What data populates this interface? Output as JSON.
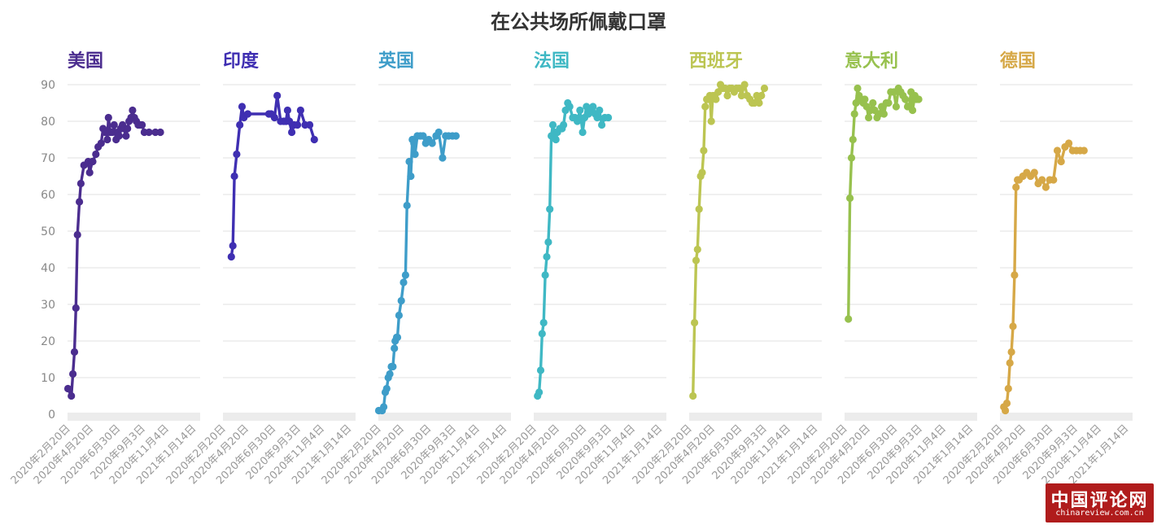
{
  "chart_data": {
    "type": "line",
    "title": "在公共场所佩戴口罩",
    "ylim": [
      0,
      90
    ],
    "yticks": [
      0,
      10,
      20,
      30,
      40,
      50,
      60,
      70,
      80,
      90
    ],
    "x_range": [
      "2020-02-20",
      "2021-02-01"
    ],
    "x_ticks": [
      "2020年2月20日",
      "2020年4月20日",
      "2020年6月30日",
      "2020年9月3日",
      "2020年11月4日",
      "2021年1月14日"
    ],
    "grid": true,
    "series": [
      {
        "name": "美国",
        "color": "#4b2d8f",
        "x": [
          "2020-02-21",
          "2020-03-01",
          "2020-03-05",
          "2020-03-09",
          "2020-03-13",
          "2020-03-17",
          "2020-03-22",
          "2020-03-26",
          "2020-04-03",
          "2020-04-14",
          "2020-04-18",
          "2020-04-25",
          "2020-04-26",
          "2020-05-04",
          "2020-05-10",
          "2020-05-18",
          "2020-05-23",
          "2020-05-28",
          "2020-06-01",
          "2020-06-03",
          "2020-06-06",
          "2020-06-11",
          "2020-06-16",
          "2020-06-21",
          "2020-06-26",
          "2020-07-01",
          "2020-07-04",
          "2020-07-08",
          "2020-07-13",
          "2020-07-17",
          "2020-07-22",
          "2020-07-26",
          "2020-07-30",
          "2020-08-04",
          "2020-08-08",
          "2020-08-13",
          "2020-08-18",
          "2020-08-23",
          "2020-08-28",
          "2020-09-02",
          "2020-09-08",
          "2020-09-20",
          "2020-10-07",
          "2020-10-20"
        ],
        "values": [
          7,
          5,
          11,
          17,
          29,
          49,
          58,
          63,
          68,
          69,
          66,
          69,
          69,
          71,
          73,
          74,
          78,
          77,
          77,
          75,
          81,
          77,
          77,
          79,
          75,
          77,
          76,
          78,
          79,
          78,
          76,
          78,
          80,
          81,
          83,
          81,
          80,
          79,
          79,
          79,
          77,
          77,
          77,
          77
        ]
      },
      {
        "name": "印度",
        "color": "#3f2fb2",
        "x": [
          "2020-03-13",
          "2020-03-17",
          "2020-03-21",
          "2020-03-27",
          "2020-04-04",
          "2020-04-10",
          "2020-04-15",
          "2020-04-25",
          "2020-06-19",
          "2020-06-25",
          "2020-07-04",
          "2020-07-11",
          "2020-07-20",
          "2020-07-28",
          "2020-08-03",
          "2020-08-07",
          "2020-08-12",
          "2020-08-18",
          "2020-08-24",
          "2020-09-02",
          "2020-09-10",
          "2020-09-22",
          "2020-10-04",
          "2020-10-16"
        ],
        "values": [
          43,
          46,
          65,
          71,
          79,
          84,
          81,
          82,
          82,
          82,
          81,
          87,
          80,
          80,
          80,
          83,
          80,
          77,
          79,
          79,
          83,
          79,
          79,
          75
        ]
      },
      {
        "name": "英国",
        "color": "#3e9dc9",
        "x": [
          "2020-02-21",
          "2020-03-01",
          "2020-03-05",
          "2020-03-09",
          "2020-03-13",
          "2020-03-17",
          "2020-03-21",
          "2020-03-25",
          "2020-03-29",
          "2020-04-02",
          "2020-04-04",
          "2020-04-08",
          "2020-04-10",
          "2020-04-14",
          "2020-04-20",
          "2020-04-26",
          "2020-05-01",
          "2020-05-05",
          "2020-05-11",
          "2020-05-15",
          "2020-05-19",
          "2020-05-23",
          "2020-05-26",
          "2020-06-01",
          "2020-06-09",
          "2020-06-16",
          "2020-06-23",
          "2020-07-01",
          "2020-07-10",
          "2020-07-20",
          "2020-07-27",
          "2020-08-06",
          "2020-08-14",
          "2020-08-22",
          "2020-09-01",
          "2020-09-10"
        ],
        "values": [
          1,
          1,
          2,
          6,
          7,
          10,
          11,
          13,
          13,
          18,
          20,
          21,
          21,
          27,
          31,
          36,
          38,
          57,
          69,
          65,
          75,
          74,
          71,
          76,
          76,
          76,
          74,
          75,
          74,
          76,
          77,
          70,
          76,
          76,
          76,
          76
        ]
      },
      {
        "name": "法国",
        "color": "#3fb8c4",
        "x": [
          "2020-03-01",
          "2020-03-05",
          "2020-03-09",
          "2020-03-13",
          "2020-03-17",
          "2020-03-21",
          "2020-03-25",
          "2020-03-29",
          "2020-04-02",
          "2020-04-06",
          "2020-04-10",
          "2020-04-14",
          "2020-04-18",
          "2020-04-22",
          "2020-04-28",
          "2020-05-04",
          "2020-05-08",
          "2020-05-13",
          "2020-05-19",
          "2020-05-24",
          "2020-06-01",
          "2020-06-07",
          "2020-06-13",
          "2020-06-20",
          "2020-06-27",
          "2020-07-02",
          "2020-07-07",
          "2020-07-12",
          "2020-07-18",
          "2020-07-24",
          "2020-07-30",
          "2020-08-04",
          "2020-08-10",
          "2020-08-16",
          "2020-08-24",
          "2020-09-02"
        ],
        "values": [
          5,
          6,
          12,
          22,
          25,
          38,
          43,
          47,
          56,
          76,
          79,
          77,
          75,
          77,
          78,
          78,
          79,
          83,
          85,
          84,
          81,
          81,
          80,
          83,
          77,
          81,
          84,
          82,
          83,
          84,
          82,
          81,
          83,
          79,
          81,
          81
        ]
      },
      {
        "name": "西班牙",
        "color": "#bcc552",
        "x": [
          "2020-03-01",
          "2020-03-05",
          "2020-03-09",
          "2020-03-13",
          "2020-03-17",
          "2020-03-21",
          "2020-03-25",
          "2020-03-29",
          "2020-04-02",
          "2020-04-06",
          "2020-04-10",
          "2020-04-14",
          "2020-04-18",
          "2020-04-22",
          "2020-04-26",
          "2020-04-30",
          "2020-05-06",
          "2020-05-12",
          "2020-05-18",
          "2020-05-24",
          "2020-05-30",
          "2020-06-05",
          "2020-06-11",
          "2020-06-17",
          "2020-06-23",
          "2020-06-30",
          "2020-07-06",
          "2020-07-14",
          "2020-07-21",
          "2020-07-28",
          "2020-08-03",
          "2020-08-09",
          "2020-08-15",
          "2020-08-21",
          "2020-08-27",
          "2020-09-04"
        ],
        "values": [
          5,
          25,
          42,
          45,
          56,
          65,
          66,
          72,
          84,
          86,
          86,
          87,
          80,
          87,
          87,
          86,
          88,
          90,
          89,
          89,
          87,
          89,
          89,
          88,
          89,
          89,
          87,
          90,
          87,
          86,
          85,
          85,
          87,
          85,
          87,
          89
        ]
      },
      {
        "name": "意大利",
        "color": "#97c14e",
        "x": [
          "2020-03-01",
          "2020-03-05",
          "2020-03-09",
          "2020-03-13",
          "2020-03-17",
          "2020-03-21",
          "2020-03-25",
          "2020-03-29",
          "2020-04-03",
          "2020-04-09",
          "2020-04-13",
          "2020-04-18",
          "2020-04-23",
          "2020-04-28",
          "2020-05-04",
          "2020-05-09",
          "2020-05-15",
          "2020-05-21",
          "2020-05-27",
          "2020-06-02",
          "2020-06-08",
          "2020-06-14",
          "2020-06-20",
          "2020-06-28",
          "2020-07-04",
          "2020-07-10",
          "2020-07-16",
          "2020-07-22",
          "2020-07-28",
          "2020-08-03",
          "2020-08-07",
          "2020-08-12",
          "2020-08-16",
          "2020-08-22",
          "2020-08-26",
          "2020-09-01"
        ],
        "values": [
          26,
          59,
          70,
          75,
          82,
          85,
          89,
          87,
          86,
          85,
          86,
          84,
          81,
          83,
          85,
          83,
          81,
          82,
          84,
          82,
          85,
          85,
          88,
          88,
          84,
          89,
          88,
          87,
          86,
          84,
          84,
          88,
          83,
          87,
          86,
          86
        ]
      },
      {
        "name": "德国",
        "color": "#d6a847",
        "x": [
          "2020-03-01",
          "2020-03-05",
          "2020-03-09",
          "2020-03-13",
          "2020-03-17",
          "2020-03-21",
          "2020-03-25",
          "2020-03-29",
          "2020-04-02",
          "2020-04-06",
          "2020-04-10",
          "2020-04-20",
          "2020-04-30",
          "2020-05-10",
          "2020-05-20",
          "2020-05-30",
          "2020-06-09",
          "2020-06-19",
          "2020-06-29",
          "2020-07-09",
          "2020-07-19",
          "2020-07-29",
          "2020-08-08",
          "2020-08-18",
          "2020-08-28",
          "2020-09-07",
          "2020-09-17",
          "2020-09-27"
        ],
        "values": [
          2,
          1,
          3,
          7,
          14,
          17,
          24,
          38,
          62,
          64,
          64,
          65,
          66,
          65,
          66,
          63,
          64,
          62,
          64,
          64,
          72,
          69,
          73,
          74,
          72,
          72,
          72,
          72
        ]
      }
    ]
  },
  "watermark": {
    "main": "中国评论网",
    "sub": "chinareview.com.cn",
    "color": "#b01c1c"
  }
}
